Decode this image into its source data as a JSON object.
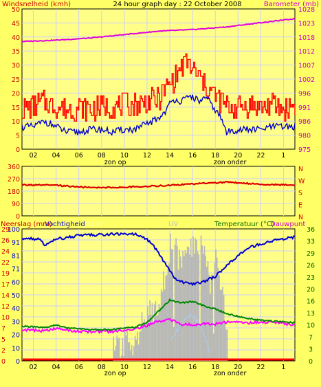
{
  "header": {
    "title": "24 hour graph day : 22 October 2008",
    "left_label": "Windsnelheid (kmh)",
    "right_label": "Barometer (mb)"
  },
  "time_axis": {
    "ticks": [
      "02",
      "04",
      "06",
      "08",
      "10",
      "12",
      "14",
      "16",
      "18",
      "20",
      "22",
      "1"
    ],
    "sunrise_label": "zon op",
    "sunset_label": "zon onder"
  },
  "colors": {
    "background": "#ffff66",
    "plot_bg": "#ffff88",
    "grid": "#ccccff",
    "wind_avg": "#0000cc",
    "wind_gust": "#ff0000",
    "pressure": "#dd00dd",
    "direction": "#dd0000",
    "humidity": "#0000cc",
    "temperature": "#008800",
    "dewpoint": "#ff00ff",
    "uv": "#b8b8b8",
    "solar": "#b8b8b8",
    "rain": "#ff0000",
    "red_text": "#cc0000",
    "magenta_text": "#cc00cc",
    "green_text": "#006600"
  },
  "chart_data": [
    {
      "type": "line",
      "name": "wind-pressure",
      "x_ticks": [
        "02",
        "04",
        "06",
        "08",
        "10",
        "12",
        "14",
        "16",
        "18",
        "20",
        "22",
        "1"
      ],
      "left_axis": {
        "label": "Windsnelheid (kmh)",
        "ticks": [
          "0",
          "5",
          "10",
          "15",
          "20",
          "25",
          "30",
          "35",
          "40",
          "45",
          "50"
        ],
        "range": [
          0,
          50
        ]
      },
      "right_axis": {
        "label": "Barometer (mb)",
        "ticks": [
          "975",
          "980",
          "986",
          "991",
          "996",
          "1002",
          "1007",
          "1012",
          "1018",
          "1023",
          "1028"
        ],
        "range": [
          975,
          1028
        ]
      },
      "series": [
        {
          "key": "gust",
          "hours": [
            0,
            2,
            3,
            4,
            5,
            6,
            7,
            8,
            9,
            10,
            11,
            12,
            12.5,
            13,
            13.5,
            14,
            14.5,
            15,
            15.5,
            16,
            16.5,
            17,
            17.5,
            18,
            19,
            20,
            21,
            22,
            23,
            24
          ],
          "values": [
            14,
            17,
            15,
            14,
            15,
            14,
            15,
            15,
            16,
            16,
            17,
            18,
            21,
            23,
            26,
            29,
            31,
            28,
            26,
            23,
            21,
            19,
            17,
            15,
            15,
            16,
            15,
            16,
            14,
            16
          ]
        },
        {
          "key": "avg",
          "hours": [
            0,
            1,
            2,
            3,
            4,
            5,
            6,
            7,
            8,
            9,
            10,
            11,
            12,
            12.5,
            13,
            13.5,
            14,
            14.5,
            15,
            15.5,
            16,
            16.5,
            17,
            17.5,
            18,
            19,
            20,
            21,
            22,
            23,
            24
          ],
          "values": [
            8,
            8,
            10,
            8,
            6,
            6,
            7,
            7,
            6,
            7,
            7,
            9,
            11,
            13,
            16,
            18,
            17,
            18,
            19,
            17,
            18,
            17,
            14,
            11,
            6,
            7,
            7,
            7,
            8,
            8,
            8
          ]
        },
        {
          "key": "pressure",
          "hours": [
            0,
            3,
            6,
            9,
            12,
            15,
            18,
            21,
            24
          ],
          "values": [
            1015.7,
            1016.2,
            1017.0,
            1018.3,
            1019.6,
            1020.2,
            1021.2,
            1022.8,
            1024.3
          ]
        }
      ]
    },
    {
      "type": "line",
      "name": "wind-direction",
      "left_axis": {
        "ticks": [
          "0",
          "90",
          "180",
          "270",
          "360"
        ],
        "range": [
          0,
          360
        ]
      },
      "right_axis": {
        "ticks": [
          "N",
          "W",
          "S",
          "E",
          "N"
        ]
      },
      "series": [
        {
          "key": "direction",
          "hours": [
            0,
            3,
            6,
            9,
            12,
            15,
            18,
            21,
            24
          ],
          "values": [
            225,
            222,
            205,
            208,
            218,
            232,
            245,
            230,
            222
          ]
        }
      ]
    },
    {
      "type": "line",
      "name": "rain-humidity-temperature",
      "labels": {
        "rain": "Neerslag (mm)",
        "humidity": "Vochtigheid",
        "solar": "Solar",
        "uv": "UV",
        "temperature": "Temperatuur (°C)",
        "dewpoint": "Dauwpunt"
      },
      "left_axis_rain": {
        "ticks": [
          "0",
          "2",
          "5",
          "7",
          "10",
          "12",
          "14",
          "17",
          "19",
          "22",
          "24",
          "26",
          "29"
        ],
        "range": [
          0,
          30
        ]
      },
      "left_axis_humidity": {
        "ticks": [
          "0",
          "10",
          "20",
          "30",
          "40",
          "50",
          "60",
          "71",
          "81",
          "91",
          "100"
        ],
        "range": [
          0,
          100
        ]
      },
      "right_axis": {
        "ticks": [
          "0",
          "3",
          "7",
          "10",
          "13",
          "16",
          "20",
          "23",
          "26",
          "29",
          "33",
          "36"
        ],
        "range": [
          0,
          36
        ]
      },
      "series": [
        {
          "key": "humidity",
          "hours": [
            0,
            1.5,
            2,
            3,
            5,
            8,
            10,
            11,
            11.5,
            12,
            12.5,
            13,
            13.5,
            14,
            15,
            16,
            17,
            18,
            19,
            20,
            22,
            24
          ],
          "values": [
            93,
            92,
            88,
            92,
            95,
            96,
            96,
            92,
            88,
            82,
            75,
            68,
            62,
            60,
            58,
            60,
            64,
            72,
            80,
            86,
            91,
            94
          ]
        },
        {
          "key": "temperature",
          "hours": [
            0,
            2,
            3,
            4,
            6,
            8,
            10,
            11,
            12,
            12.5,
            13,
            14,
            15,
            16,
            17,
            18,
            20,
            22,
            24
          ],
          "values": [
            9.5,
            9.0,
            9.8,
            9.0,
            8.5,
            8.6,
            9.2,
            10.5,
            13.5,
            15,
            16.6,
            15.8,
            16.2,
            15.0,
            14.2,
            12.8,
            11.5,
            10.8,
            10.4
          ]
        },
        {
          "key": "dewpoint",
          "hours": [
            0,
            2,
            3,
            5,
            8,
            10,
            11,
            12,
            13,
            14,
            15,
            16,
            17,
            18,
            20,
            22,
            24
          ],
          "values": [
            8.5,
            8.2,
            8.8,
            8.0,
            8.0,
            8.8,
            9.6,
            10.8,
            11.3,
            10.0,
            9.8,
            10.2,
            10.0,
            10.6,
            10.4,
            10.6,
            9.8
          ]
        },
        {
          "key": "solar",
          "hours": [
            8,
            9,
            10,
            11,
            12,
            12.5,
            13,
            14,
            15,
            16,
            16.5,
            17,
            17.5,
            18
          ],
          "values": [
            8,
            14,
            20,
            33,
            47,
            61,
            90,
            75,
            86,
            88,
            60,
            83,
            55,
            18
          ]
        },
        {
          "key": "uv",
          "hours": [
            13,
            14,
            15,
            16,
            16.5
          ],
          "values": [
            2,
            4,
            5,
            3,
            1
          ]
        },
        {
          "key": "rain",
          "hours": [
            0,
            24
          ],
          "values": [
            0,
            0
          ]
        }
      ]
    }
  ]
}
